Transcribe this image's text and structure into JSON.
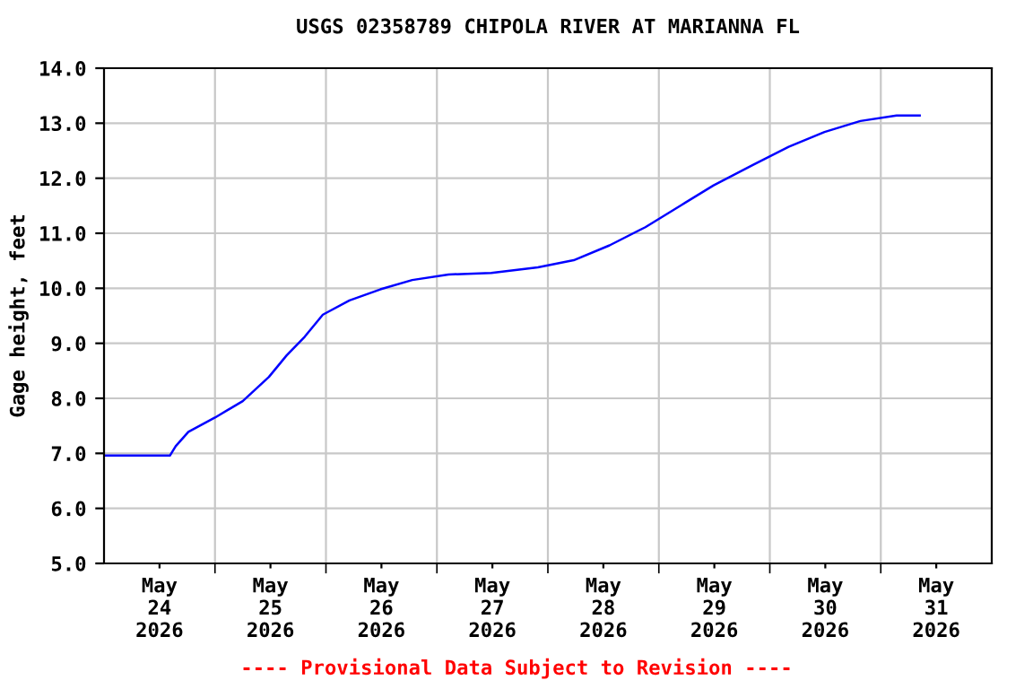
{
  "chart_data": {
    "type": "line",
    "title": "USGS 02358789 CHIPOLA RIVER AT MARIANNA FL",
    "ylabel": "Gage height, feet",
    "annotations": [
      "---- Provisional Data Subject to Revision ----"
    ],
    "x": [
      "2026-05-23T12:00",
      "2026-05-24T02:15",
      "2026-05-24T03:30",
      "2026-05-24T06:15",
      "2026-05-24T12:00",
      "2026-05-24T18:00",
      "2026-05-24T23:40",
      "2026-05-25T03:30",
      "2026-05-25T07:25",
      "2026-05-25T11:20",
      "2026-05-25T17:05",
      "2026-05-25T23:45",
      "2026-05-26T06:40",
      "2026-05-26T14:30",
      "2026-05-26T23:45",
      "2026-05-27T09:50",
      "2026-05-27T17:35",
      "2026-05-28T01:20",
      "2026-05-28T09:05",
      "2026-05-28T16:50",
      "2026-05-28T23:50",
      "2026-05-29T08:20",
      "2026-05-29T16:05",
      "2026-05-29T23:50",
      "2026-05-30T07:35",
      "2026-05-30T15:25",
      "2026-05-30T20:25"
    ],
    "series": [
      {
        "color": "#0000ff",
        "values": [
          6.96,
          6.96,
          7.13,
          7.39,
          7.65,
          7.95,
          8.39,
          8.78,
          9.12,
          9.52,
          9.78,
          9.98,
          10.15,
          10.25,
          10.28,
          10.38,
          10.51,
          10.78,
          11.11,
          11.51,
          11.87,
          12.24,
          12.57,
          12.84,
          13.04,
          13.14,
          13.14
        ]
      }
    ],
    "xlim": [
      "2026-05-23T12:00",
      "2026-05-31T12:00"
    ],
    "xticks": [
      {
        "value": "2026-05-24T00:00",
        "label": "May\n24\n2026"
      },
      {
        "value": "2026-05-25T00:00",
        "label": "May\n25\n2026"
      },
      {
        "value": "2026-05-26T00:00",
        "label": "May\n26\n2026"
      },
      {
        "value": "2026-05-27T00:00",
        "label": "May\n27\n2026"
      },
      {
        "value": "2026-05-28T00:00",
        "label": "May\n28\n2026"
      },
      {
        "value": "2026-05-29T00:00",
        "label": "May\n29\n2026"
      },
      {
        "value": "2026-05-30T00:00",
        "label": "May\n30\n2026"
      },
      {
        "value": "2026-05-31T00:00",
        "label": "May\n31\n2026"
      }
    ],
    "ylim": [
      5,
      14
    ],
    "yticks": [
      {
        "value": 5,
        "label": "5.0"
      },
      {
        "value": 6,
        "label": "6.0"
      },
      {
        "value": 7,
        "label": "7.0"
      },
      {
        "value": 8,
        "label": "8.0"
      },
      {
        "value": 9,
        "label": "9.0"
      },
      {
        "value": 10,
        "label": "10.0"
      },
      {
        "value": 11,
        "label": "11.0"
      },
      {
        "value": 12,
        "label": "12.0"
      },
      {
        "value": 13,
        "label": "13.0"
      },
      {
        "value": 14,
        "label": "14.0"
      }
    ],
    "grid": true
  }
}
